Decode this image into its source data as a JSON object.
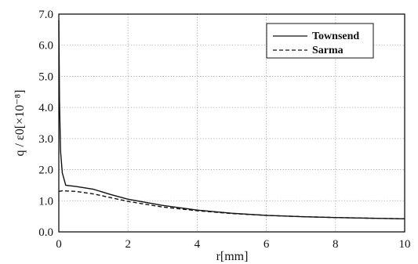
{
  "chart_data": {
    "type": "line",
    "xlabel": "r[mm]",
    "ylabel": "q / ε0[×10⁻⁸]",
    "xlim": [
      0,
      10
    ],
    "ylim": [
      0,
      7
    ],
    "x_ticks": [
      "0",
      "2",
      "4",
      "6",
      "8",
      "10"
    ],
    "y_ticks": [
      "0.0",
      "1.0",
      "2.0",
      "3.0",
      "4.0",
      "5.0",
      "6.0",
      "7.0"
    ],
    "grid": true,
    "legend_position": "top-right",
    "series": [
      {
        "name": "Townsend",
        "style": "solid",
        "color": "#111111",
        "x": [
          0,
          0.02,
          0.05,
          0.1,
          0.2,
          0.5,
          1.0,
          1.5,
          2.0,
          3.0,
          4.0,
          5.0,
          6.0,
          7.0,
          8.0,
          9.0,
          10.0
        ],
        "y": [
          6.8,
          4.2,
          2.6,
          1.9,
          1.5,
          1.46,
          1.37,
          1.2,
          1.05,
          0.85,
          0.7,
          0.6,
          0.53,
          0.49,
          0.46,
          0.44,
          0.42
        ]
      },
      {
        "name": "Sarma",
        "style": "dashed",
        "color": "#111111",
        "x": [
          0,
          0.1,
          0.5,
          1.0,
          1.5,
          2.0,
          3.0,
          4.0,
          5.0,
          6.0,
          7.0,
          8.0,
          9.0,
          10.0
        ],
        "y": [
          1.3,
          1.32,
          1.3,
          1.22,
          1.1,
          0.98,
          0.8,
          0.68,
          0.59,
          0.53,
          0.49,
          0.46,
          0.44,
          0.42
        ]
      }
    ]
  }
}
